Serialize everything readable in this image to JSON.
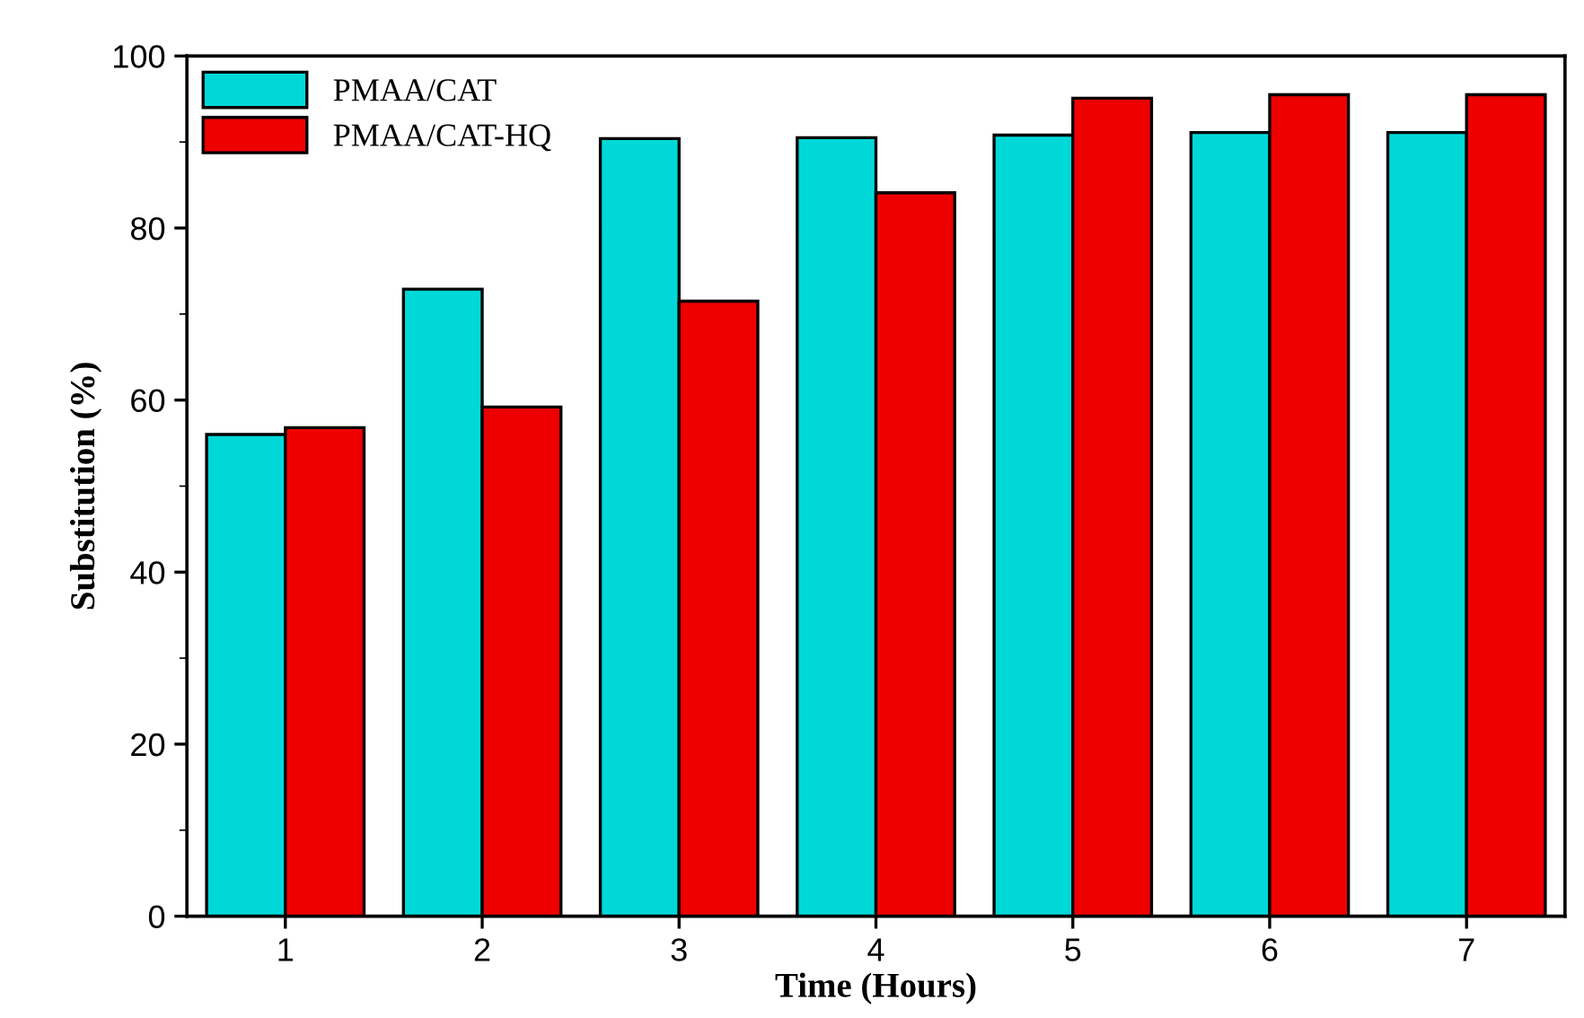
{
  "chart_data": {
    "type": "bar",
    "xlabel": "Time (Hours)",
    "ylabel": "Substitution (%)",
    "x": [
      1,
      2,
      3,
      4,
      5,
      6,
      7
    ],
    "series": [
      {
        "name": "PMAA/CAT",
        "color": "#00d8d8",
        "values": [
          56.0,
          72.9,
          90.4,
          90.5,
          90.8,
          91.1,
          91.1
        ]
      },
      {
        "name": "PMAA/CAT-HQ",
        "color": "#ee0000",
        "values": [
          56.8,
          59.2,
          71.5,
          84.1,
          95.1,
          95.5,
          95.5
        ]
      }
    ],
    "xlim": [
      0.5,
      7.5
    ],
    "xticks": [
      1,
      2,
      3,
      4,
      5,
      6,
      7
    ],
    "ylim": [
      0,
      100
    ],
    "yticks": [
      0,
      20,
      40,
      60,
      80,
      100
    ],
    "grid": false,
    "legend": "top left"
  }
}
